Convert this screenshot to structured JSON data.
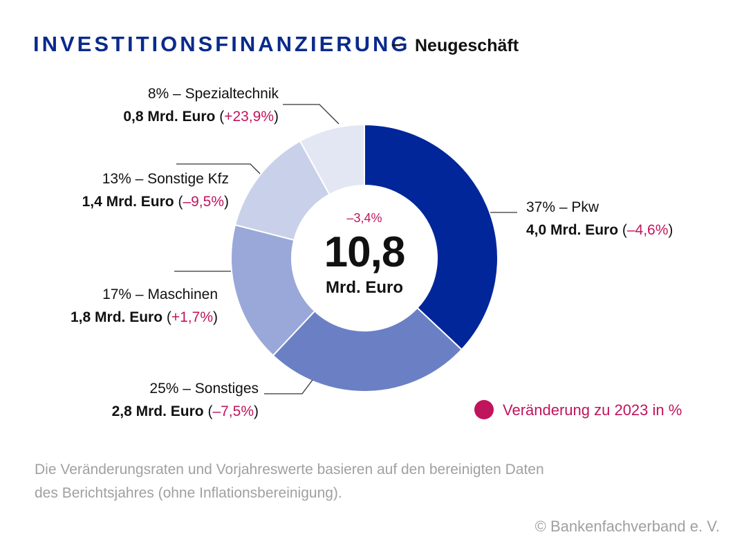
{
  "header": {
    "title": "INVESTITIONSFINANZIERUNG",
    "separator": "–",
    "subtitle": "Neugeschäft"
  },
  "colors": {
    "title": "#0a2a8c",
    "text": "#111111",
    "accent": "#c0145c",
    "muted": "#a0a0a0",
    "leader": "#333333"
  },
  "chart_data": {
    "type": "pie",
    "variant": "donut",
    "unit": "Mrd. Euro",
    "total": 10.8,
    "total_label": "10,8",
    "total_unit_label": "Mrd. Euro",
    "total_change_label": "–3,4%",
    "slices": [
      {
        "category": "Pkw",
        "share": 37,
        "value": 4.0,
        "change": -4.6,
        "color": "#00269a",
        "line1": "37% – Pkw",
        "value_label": "4,0 Mrd. Euro",
        "change_label": "–4,6%"
      },
      {
        "category": "Sonstiges",
        "share": 25,
        "value": 2.8,
        "change": -7.5,
        "color": "#6b80c4",
        "line1": "25% – Sonstiges",
        "value_label": "2,8 Mrd. Euro",
        "change_label": "–7,5%"
      },
      {
        "category": "Maschinen",
        "share": 17,
        "value": 1.8,
        "change": 1.7,
        "color": "#99a8d8",
        "line1": "17% – Maschinen",
        "value_label": "1,8 Mrd. Euro",
        "change_label": "+1,7%"
      },
      {
        "category": "Sonstige Kfz",
        "share": 13,
        "value": 1.4,
        "change": -9.5,
        "color": "#c9d1ea",
        "line1": "13% – Sonstige Kfz",
        "value_label": "1,4 Mrd. Euro",
        "change_label": "–9,5%"
      },
      {
        "category": "Spezialtechnik",
        "share": 8,
        "value": 0.8,
        "change": 23.9,
        "color": "#e3e7f3",
        "line1": "8% – Spezialtechnik",
        "value_label": "0,8 Mrd. Euro",
        "change_label": "+23,9%"
      }
    ],
    "legend": {
      "label": "Veränderung zu 2023 in %",
      "color": "#c0145c"
    }
  },
  "footnote": {
    "line1": "Die Veränderungsraten und Vorjahreswerte basieren auf den bereinigten Daten",
    "line2": "des Berichtsjahres (ohne Inflationsbereinigung)."
  },
  "source": "© Bankenfachverband e. V."
}
